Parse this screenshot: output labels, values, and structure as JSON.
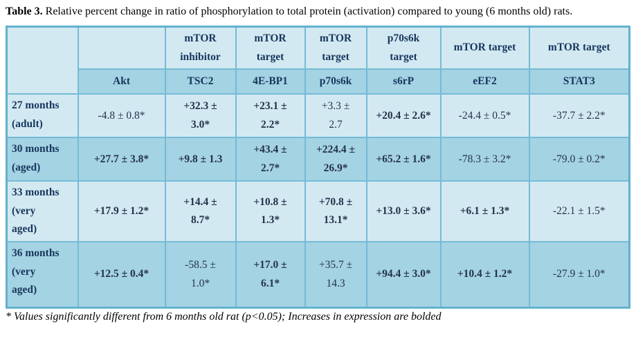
{
  "caption": {
    "label": "Table 3.",
    "text": "Relative percent change in ratio of phosphorylation to total protein (activation) compared to young (6 months old) rats."
  },
  "table": {
    "group_headers": [
      "",
      "mTOR\ninhibitor",
      "mTOR\ntarget",
      "mTOR\ntarget",
      "p70s6k\ntarget",
      "mTOR target",
      "mTOR target"
    ],
    "column_headers": [
      "Akt",
      "TSC2",
      "4E-BP1",
      "p70s6k",
      "s6rP",
      "eEF2",
      "STAT3"
    ],
    "rows": [
      {
        "label": "27 months\n(adult)",
        "cells": [
          {
            "text": "-4.8 ± 0.8*",
            "bold": false
          },
          {
            "text": "+32.3 ±\n3.0*",
            "bold": true
          },
          {
            "text": "+23.1 ±\n2.2*",
            "bold": true
          },
          {
            "text": "+3.3 ±\n2.7",
            "bold": false
          },
          {
            "text": "+20.4 ± 2.6*",
            "bold": true
          },
          {
            "text": "-24.4 ± 0.5*",
            "bold": false
          },
          {
            "text": "-37.7 ± 2.2*",
            "bold": false
          }
        ]
      },
      {
        "label": "30 months\n(aged)",
        "cells": [
          {
            "text": "+27.7 ± 3.8*",
            "bold": true
          },
          {
            "text": "+9.8 ± 1.3",
            "bold": true
          },
          {
            "text": "+43.4 ±\n2.7*",
            "bold": true
          },
          {
            "text": "+224.4 ±\n26.9*",
            "bold": true
          },
          {
            "text": "+65.2 ± 1.6*",
            "bold": true
          },
          {
            "text": "-78.3 ± 3.2*",
            "bold": false
          },
          {
            "text": "-79.0 ± 0.2*",
            "bold": false
          }
        ]
      },
      {
        "label": "33 months\n(very\naged)",
        "cells": [
          {
            "text": "+17.9 ± 1.2*",
            "bold": true
          },
          {
            "text": "+14.4 ±\n8.7*",
            "bold": true
          },
          {
            "text": "+10.8 ±\n1.3*",
            "bold": true
          },
          {
            "text": "+70.8 ±\n13.1*",
            "bold": true
          },
          {
            "text": "+13.0 ± 3.6*",
            "bold": true
          },
          {
            "text": "+6.1 ± 1.3*",
            "bold": true
          },
          {
            "text": "-22.1 ± 1.5*",
            "bold": false
          }
        ]
      },
      {
        "label": "36 months\n(very\naged)",
        "cells": [
          {
            "text": "+12.5 ± 0.4*",
            "bold": true
          },
          {
            "text": "-58.5 ±\n1.0*",
            "bold": false
          },
          {
            "text": "+17.0 ±\n6.1*",
            "bold": true
          },
          {
            "text": "+35.7 ±\n14.3",
            "bold": false
          },
          {
            "text": "+94.4 ± 3.0*",
            "bold": true
          },
          {
            "text": "+10.4 ± 1.2*",
            "bold": true
          },
          {
            "text": "-27.9 ± 1.0*",
            "bold": false
          }
        ]
      }
    ]
  },
  "footnote": "* Values significantly different from 6 months old rat (p<0.05); Increases in expression are bolded",
  "colors": {
    "cell_light": "#d3e9f2",
    "cell_dark": "#a4d3e3",
    "border": "#74bbd5",
    "outer_border": "#62b1cd",
    "header_text": "#17365d"
  }
}
